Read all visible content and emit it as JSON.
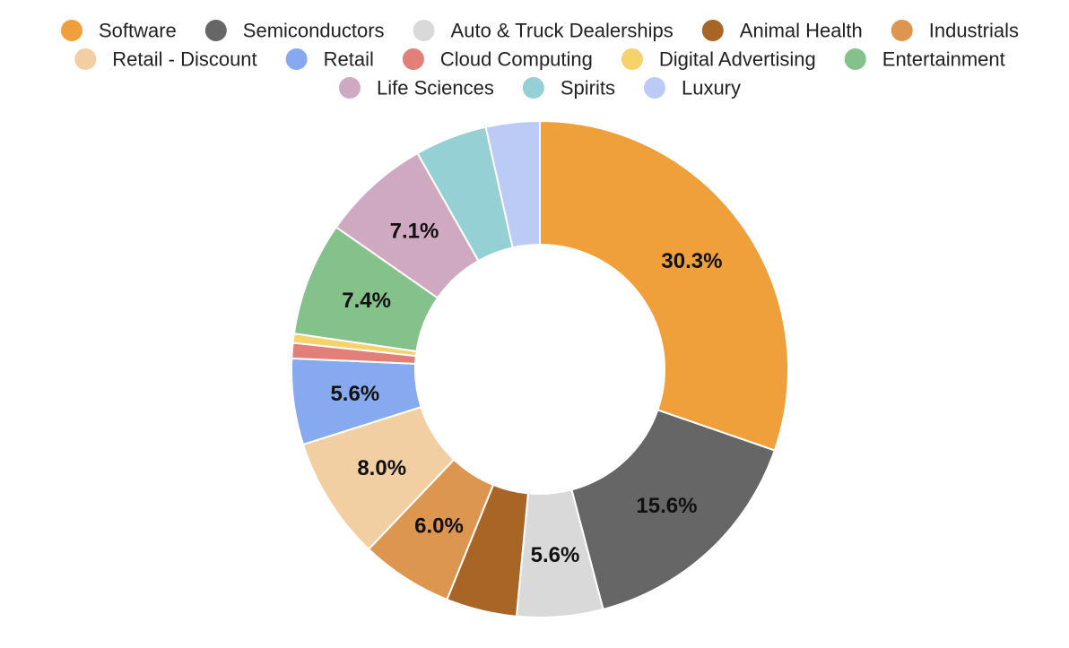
{
  "chart_data": {
    "type": "pie",
    "variant": "donut",
    "legend_position": "top",
    "categories": [
      "Software",
      "Semiconductors",
      "Auto & Truck Dealerships",
      "Animal Health",
      "Industrials",
      "Retail - Discount",
      "Retail",
      "Cloud Computing",
      "Digital Advertising",
      "Entertainment",
      "Life Sciences",
      "Spirits",
      "Luxury"
    ],
    "values": [
      30.3,
      15.6,
      5.6,
      4.6,
      6.0,
      8.0,
      5.6,
      1.0,
      0.6,
      7.4,
      7.1,
      4.7,
      3.5
    ],
    "data_labels": [
      "30.3%",
      "15.6%",
      "5.6%",
      "",
      "6.0%",
      "8.0%",
      "5.6%",
      "",
      "",
      "7.4%",
      "7.1%",
      "",
      ""
    ],
    "colors": [
      "#f0a03a",
      "#666666",
      "#d9d9d9",
      "#a86525",
      "#dd9650",
      "#f2cfa3",
      "#87a9ef",
      "#e17f78",
      "#f5d26c",
      "#84c18b",
      "#cfa8c1",
      "#95d0d4",
      "#bccbf6"
    ]
  }
}
